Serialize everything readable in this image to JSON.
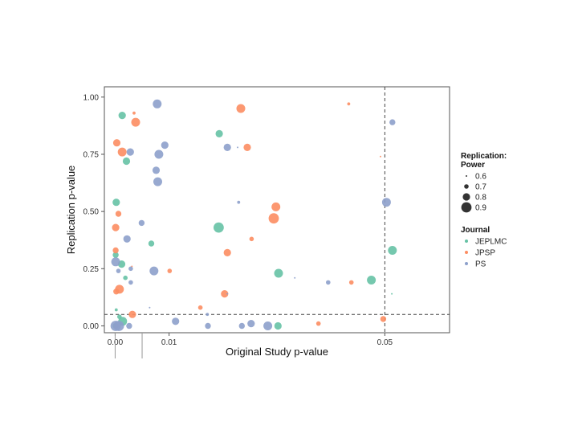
{
  "chart_data": {
    "type": "scatter",
    "xlabel": "Original Study p-value",
    "ylabel": "Replication p-value",
    "x_ticks": [
      {
        "value": 0.0,
        "label": "0.00"
      },
      {
        "value": 0.01,
        "label": "0.01"
      },
      {
        "value": 0.05,
        "label": "0.05"
      }
    ],
    "y_ticks": [
      {
        "value": 0.0,
        "label": "0.00"
      },
      {
        "value": 0.25,
        "label": "0.25"
      },
      {
        "value": 0.5,
        "label": "0.50"
      },
      {
        "value": 0.75,
        "label": "0.75"
      },
      {
        "value": 1.0,
        "label": "1.00"
      }
    ],
    "xlim": [
      -0.002,
      0.062
    ],
    "ylim": [
      -0.03,
      1.045
    ],
    "reference_lines": [
      {
        "axis": "x",
        "value": 0.05,
        "style": "dashed"
      },
      {
        "axis": "y",
        "value": 0.05,
        "style": "dashed"
      }
    ],
    "grid": false,
    "size_legend": {
      "title_line1": "Replication:",
      "title_line2": "Power",
      "entries": [
        {
          "label": "0.6",
          "power": 0.6
        },
        {
          "label": "0.7",
          "power": 0.7
        },
        {
          "label": "0.8",
          "power": 0.8
        },
        {
          "label": "0.9",
          "power": 0.9
        }
      ]
    },
    "color_legend": {
      "title": "Journal",
      "entries": [
        {
          "label": "JEPLMC",
          "color": "#66c2a5"
        },
        {
          "label": "JPSP",
          "color": "#fc8d62"
        },
        {
          "label": "PS",
          "color": "#8da0cb"
        }
      ]
    },
    "legend_position": "right",
    "series": [
      {
        "name": "JEPLMC",
        "color": "#66c2a5",
        "points": [
          {
            "x": 0.0013,
            "y": 0.92,
            "power": 0.8
          },
          {
            "x": 0.0021,
            "y": 0.72,
            "power": 0.8
          },
          {
            "x": 0.0002,
            "y": 0.54,
            "power": 0.8
          },
          {
            "x": 0.0067,
            "y": 0.36,
            "power": 0.75
          },
          {
            "x": 0.0001,
            "y": 0.31,
            "power": 0.75
          },
          {
            "x": 0.0012,
            "y": 0.27,
            "power": 0.8
          },
          {
            "x": 0.0019,
            "y": 0.21,
            "power": 0.7
          },
          {
            "x": 0.0002,
            "y": 0.07,
            "power": 0.65
          },
          {
            "x": 0.0008,
            "y": 0.04,
            "power": 0.7
          },
          {
            "x": 0.0014,
            "y": 0.02,
            "power": 0.85
          },
          {
            "x": 0.0001,
            "y": 0.0,
            "power": 0.75
          },
          {
            "x": 0.0193,
            "y": 0.84,
            "power": 0.8
          },
          {
            "x": 0.0192,
            "y": 0.43,
            "power": 0.9
          },
          {
            "x": 0.0303,
            "y": 0.23,
            "power": 0.85
          },
          {
            "x": 0.0475,
            "y": 0.2,
            "power": 0.85
          },
          {
            "x": 0.0514,
            "y": 0.33,
            "power": 0.85
          },
          {
            "x": 0.0513,
            "y": 0.14,
            "power": 0.6
          },
          {
            "x": 0.0302,
            "y": 0.0,
            "power": 0.8
          }
        ]
      },
      {
        "name": "JPSP",
        "color": "#fc8d62",
        "points": [
          {
            "x": 0.0035,
            "y": 0.93,
            "power": 0.65
          },
          {
            "x": 0.0038,
            "y": 0.89,
            "power": 0.85
          },
          {
            "x": 0.0003,
            "y": 0.8,
            "power": 0.8
          },
          {
            "x": 0.0013,
            "y": 0.76,
            "power": 0.85
          },
          {
            "x": 0.0006,
            "y": 0.49,
            "power": 0.75
          },
          {
            "x": 0.0001,
            "y": 0.43,
            "power": 0.8
          },
          {
            "x": 0.0001,
            "y": 0.33,
            "power": 0.75
          },
          {
            "x": 0.0031,
            "y": 0.26,
            "power": 0.6
          },
          {
            "x": 0.0008,
            "y": 0.16,
            "power": 0.85
          },
          {
            "x": 0.0002,
            "y": 0.15,
            "power": 0.75
          },
          {
            "x": 0.0032,
            "y": 0.05,
            "power": 0.8
          },
          {
            "x": 0.0233,
            "y": 0.95,
            "power": 0.85
          },
          {
            "x": 0.0245,
            "y": 0.78,
            "power": 0.8
          },
          {
            "x": 0.0298,
            "y": 0.52,
            "power": 0.85
          },
          {
            "x": 0.0294,
            "y": 0.47,
            "power": 0.9
          },
          {
            "x": 0.0253,
            "y": 0.38,
            "power": 0.7
          },
          {
            "x": 0.0208,
            "y": 0.32,
            "power": 0.8
          },
          {
            "x": 0.0101,
            "y": 0.24,
            "power": 0.7
          },
          {
            "x": 0.0203,
            "y": 0.14,
            "power": 0.8
          },
          {
            "x": 0.0158,
            "y": 0.08,
            "power": 0.7
          },
          {
            "x": 0.0433,
            "y": 0.97,
            "power": 0.65
          },
          {
            "x": 0.0492,
            "y": 0.74,
            "power": 0.6
          },
          {
            "x": 0.0438,
            "y": 0.19,
            "power": 0.7
          },
          {
            "x": 0.0377,
            "y": 0.01,
            "power": 0.7
          },
          {
            "x": 0.0497,
            "y": 0.03,
            "power": 0.75
          }
        ]
      },
      {
        "name": "PS",
        "color": "#8da0cb",
        "points": [
          {
            "x": 0.0078,
            "y": 0.97,
            "power": 0.85
          },
          {
            "x": 0.0028,
            "y": 0.76,
            "power": 0.8
          },
          {
            "x": 0.0092,
            "y": 0.79,
            "power": 0.8
          },
          {
            "x": 0.0081,
            "y": 0.75,
            "power": 0.85
          },
          {
            "x": 0.0076,
            "y": 0.68,
            "power": 0.8
          },
          {
            "x": 0.0079,
            "y": 0.63,
            "power": 0.85
          },
          {
            "x": 0.0022,
            "y": 0.38,
            "power": 0.8
          },
          {
            "x": 0.0049,
            "y": 0.45,
            "power": 0.75
          },
          {
            "x": 0.0001,
            "y": 0.28,
            "power": 0.85
          },
          {
            "x": 0.0006,
            "y": 0.24,
            "power": 0.7
          },
          {
            "x": 0.0029,
            "y": 0.25,
            "power": 0.7
          },
          {
            "x": 0.0072,
            "y": 0.24,
            "power": 0.85
          },
          {
            "x": 0.0029,
            "y": 0.19,
            "power": 0.7
          },
          {
            "x": 0.0064,
            "y": 0.08,
            "power": 0.6
          },
          {
            "x": 0.0001,
            "y": 0.0,
            "power": 0.9
          },
          {
            "x": 0.0007,
            "y": 0.0,
            "power": 0.9
          },
          {
            "x": 0.0026,
            "y": 0.0,
            "power": 0.75
          },
          {
            "x": 0.0112,
            "y": 0.02,
            "power": 0.8
          },
          {
            "x": 0.0171,
            "y": 0.05,
            "power": 0.65
          },
          {
            "x": 0.0172,
            "y": 0.0,
            "power": 0.75
          },
          {
            "x": 0.0208,
            "y": 0.78,
            "power": 0.8
          },
          {
            "x": 0.0227,
            "y": 0.78,
            "power": 0.6
          },
          {
            "x": 0.0229,
            "y": 0.54,
            "power": 0.65
          },
          {
            "x": 0.0208,
            "y": 0.14,
            "power": 0.6
          },
          {
            "x": 0.0235,
            "y": 0.0,
            "power": 0.75
          },
          {
            "x": 0.0252,
            "y": 0.01,
            "power": 0.8
          },
          {
            "x": 0.0283,
            "y": 0.0,
            "power": 0.85
          },
          {
            "x": 0.0333,
            "y": 0.21,
            "power": 0.6
          },
          {
            "x": 0.0395,
            "y": 0.19,
            "power": 0.7
          },
          {
            "x": 0.0503,
            "y": 0.54,
            "power": 0.85
          },
          {
            "x": 0.0514,
            "y": 0.89,
            "power": 0.75
          }
        ]
      }
    ]
  }
}
